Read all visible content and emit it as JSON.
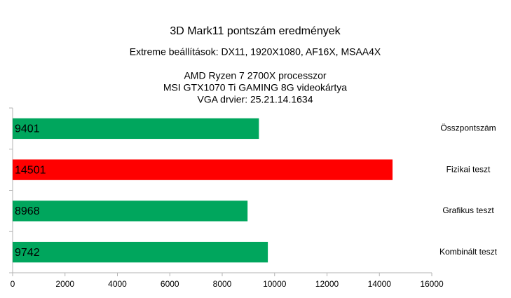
{
  "chart_data": {
    "type": "hbar",
    "title": "3D Mark11 pontszám eredmények",
    "subtitle": [
      "Extreme beállítások: DX11, 1920X1080, AF16X, MSAA4X",
      "AMD Ryzen 7 2700X  processzor",
      "MSI GTX1070 Ti GAMING 8G videokártya",
      "VGA drvier: 25.21.14.1634"
    ],
    "categories": [
      "Összpontszám",
      "Fizikai teszt",
      "Grafikus teszt",
      "Kombinált teszt"
    ],
    "values": [
      9401,
      14501,
      8968,
      9742
    ],
    "colors": [
      "#00a65d",
      "#ff0000",
      "#00a65d",
      "#00a65d"
    ],
    "xlim": [
      0,
      16000
    ],
    "xticks": [
      0,
      2000,
      4000,
      6000,
      8000,
      10000,
      12000,
      14000,
      16000
    ],
    "grid": false
  }
}
